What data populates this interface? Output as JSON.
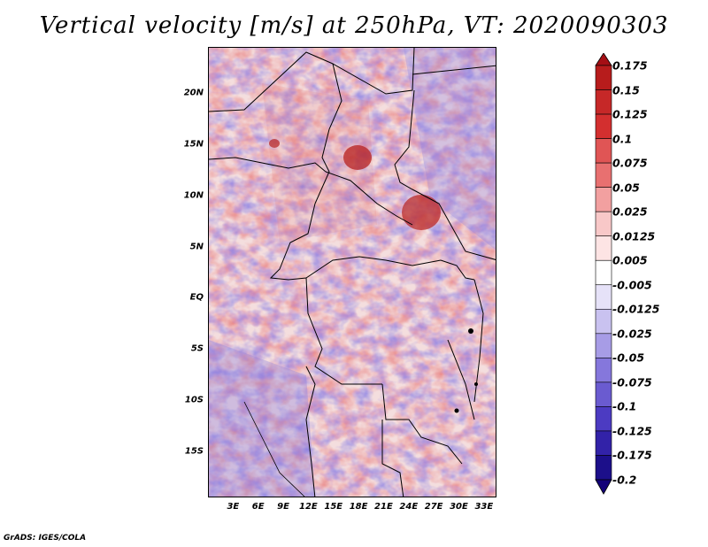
{
  "title": "Vertical velocity [m/s] at 250hPa, VT: 2020090303",
  "footer": "GrADS: IGES/COLA",
  "map": {
    "lat_labels": [
      "20N",
      "15N",
      "10N",
      "5N",
      "EQ",
      "5S",
      "10S",
      "15S"
    ],
    "lat_values": [
      20,
      15,
      10,
      5,
      0,
      -5,
      -10,
      -15
    ],
    "lon_labels": [
      "3E",
      "6E",
      "9E",
      "12E",
      "15E",
      "18E",
      "21E",
      "24E",
      "27E",
      "30E",
      "33E"
    ],
    "lon_values": [
      3,
      6,
      9,
      12,
      15,
      18,
      21,
      24,
      27,
      30,
      33
    ],
    "lon_range": [
      0,
      34.5
    ],
    "lat_range": [
      -19.5,
      24.5
    ]
  },
  "colorbar": {
    "labels": [
      "0.175",
      "0.15",
      "0.125",
      "0.1",
      "0.075",
      "0.05",
      "0.025",
      "0.0125",
      "0.005",
      "-0.005",
      "-0.0125",
      "-0.025",
      "-0.05",
      "-0.075",
      "-0.1",
      "-0.125",
      "-0.175",
      "-0.2"
    ],
    "colors": [
      "#a50f15",
      "#b71c1c",
      "#c62828",
      "#d32f2f",
      "#e05555",
      "#e87070",
      "#f2a0a0",
      "#f8c8c8",
      "#fde4e4",
      "#ffffff",
      "#e6e2f8",
      "#c9c2f0",
      "#a79ce6",
      "#8577dc",
      "#6a5bd0",
      "#4c3bc2",
      "#3222a8",
      "#1c0f8a",
      "#120078"
    ]
  }
}
